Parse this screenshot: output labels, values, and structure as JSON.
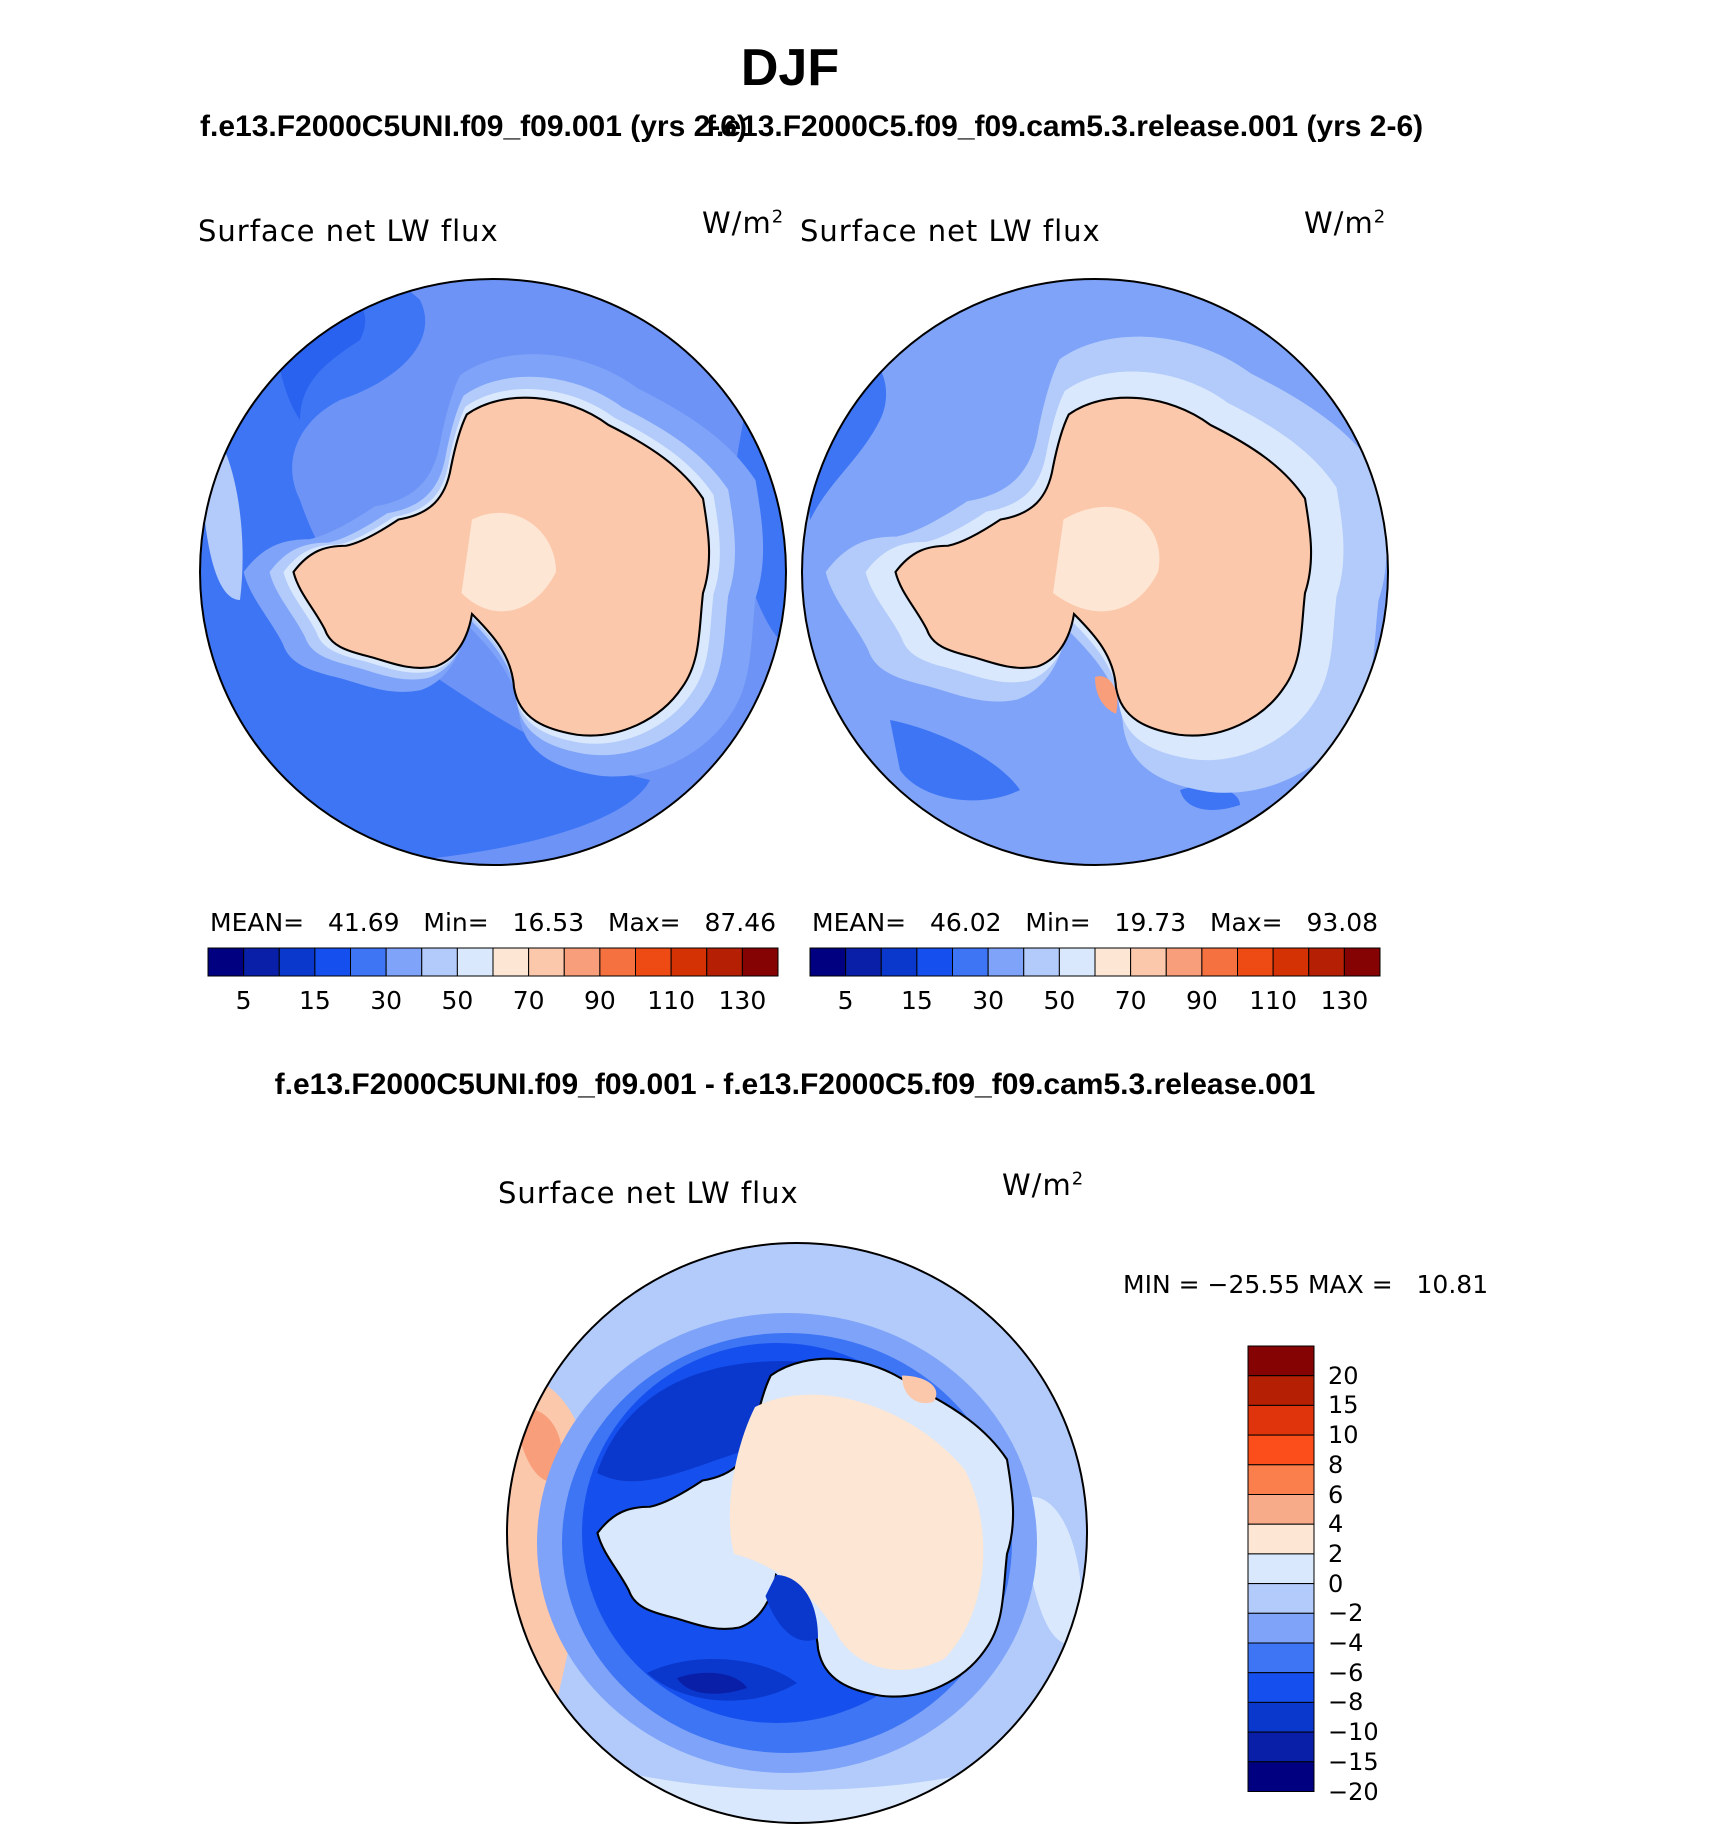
{
  "season": "DJF",
  "panels": [
    {
      "case_title": "f.e13.F2000C5UNI.f09_f09.001 (yrs 2-6)",
      "variable": "Surface net LW flux",
      "units": "W/m",
      "units_exp": "2",
      "stats": {
        "mean_label": "MEAN=",
        "mean": "41.69",
        "min_label": "Min=",
        "min": "16.53",
        "max_label": "Max=",
        "max": "87.46"
      }
    },
    {
      "case_title": "f.e13.F2000C5.f09_f09.cam5.3.release.001 (yrs 2-6)",
      "variable": "Surface net LW flux",
      "units": "W/m",
      "units_exp": "2",
      "stats": {
        "mean_label": "MEAN=",
        "mean": "46.02",
        "min_label": "Min=",
        "min": "19.73",
        "max_label": "Max=",
        "max": "93.08"
      }
    }
  ],
  "colorbar": {
    "colors": [
      "#000080",
      "#0a1fa8",
      "#0a37cc",
      "#1550ee",
      "#3d75f5",
      "#7ea3f8",
      "#b3cbfb",
      "#d9e8fc",
      "#fde6d3",
      "#fcc8ac",
      "#f99e7a",
      "#f5713f",
      "#ed4a14",
      "#d43205",
      "#b51f03",
      "#850303"
    ],
    "tick_labels": [
      "5",
      "15",
      "30",
      "50",
      "70",
      "90",
      "110",
      "130"
    ]
  },
  "diff": {
    "title": "f.e13.F2000C5UNI.f09_f09.001 - f.e13.F2000C5.f09_f09.cam5.3.release.001",
    "variable": "Surface net LW flux",
    "units": "W/m",
    "units_exp": "2",
    "minmax": {
      "min_label": "MIN =",
      "min": "−25.55",
      "max_label": "MAX =",
      "max": "10.81"
    },
    "colorbar": {
      "colors": [
        "#850303",
        "#b51f03",
        "#e0350c",
        "#fc4e1a",
        "#fa7f4d",
        "#f8ab88",
        "#fde6d3",
        "#d9e8fc",
        "#b3cbfb",
        "#7ea3f8",
        "#3d75f5",
        "#1550ee",
        "#0a37cc",
        "#0a1fa8",
        "#000080"
      ],
      "labels": [
        "20",
        "15",
        "10",
        "8",
        "6",
        "4",
        "2",
        "0",
        "−2",
        "−4",
        "−6",
        "−8",
        "−10",
        "−15",
        "−20"
      ]
    }
  }
}
